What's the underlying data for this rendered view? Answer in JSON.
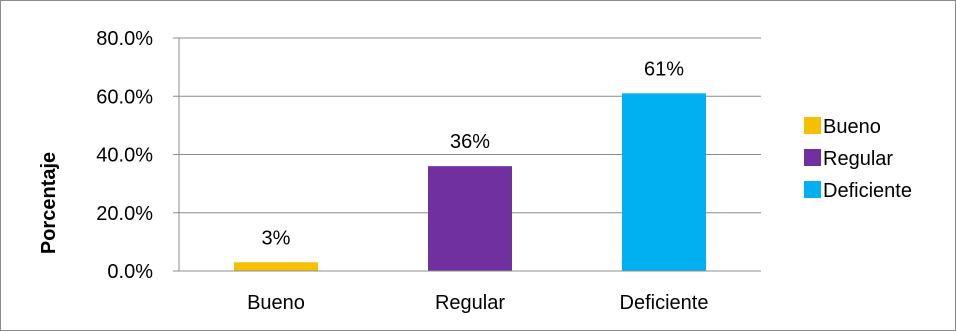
{
  "chart_data": {
    "type": "bar",
    "categories": [
      "Bueno",
      "Regular",
      "Deficiente"
    ],
    "values": [
      3,
      36,
      61
    ],
    "data_labels": [
      "3%",
      "36%",
      "61%"
    ],
    "colors": [
      "#F5C000",
      "#7030A0",
      "#00B0F0"
    ],
    "ylabel": "Porcentaje",
    "xlabel": "",
    "ylim": [
      0,
      80
    ],
    "yticks": [
      0,
      20,
      40,
      60,
      80
    ],
    "ytick_labels": [
      "0.0%",
      "20.0%",
      "40.0%",
      "60.0%",
      "80.0%"
    ],
    "grid": true,
    "legend": {
      "position": "right",
      "entries": [
        "Bueno",
        "Regular",
        "Deficiente"
      ]
    }
  }
}
